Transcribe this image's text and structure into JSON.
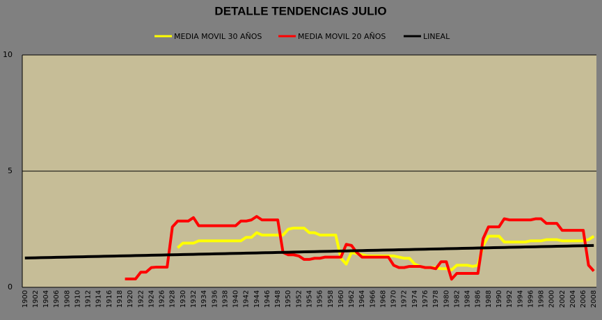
{
  "chart_data": {
    "type": "line",
    "title": "DETALLE TENDENCIAS JULIO",
    "categories": [
      "1900",
      null,
      "1902",
      null,
      "1904",
      null,
      "1906",
      null,
      "1908",
      null,
      "1910",
      null,
      "1912",
      null,
      "1914",
      null,
      "1916",
      null,
      "1918",
      null,
      "1920",
      null,
      "1922",
      null,
      "1924",
      null,
      "1926",
      null,
      "1928",
      null,
      "1930",
      null,
      "1932",
      null,
      "1934",
      null,
      "1936",
      null,
      "1938",
      null,
      "1940",
      null,
      "1942",
      null,
      "1944",
      null,
      "1946",
      null,
      "1948",
      null,
      "1950",
      null,
      "1952",
      null,
      "1954",
      null,
      "1956",
      null,
      "1958",
      null,
      "1960",
      null,
      "1962",
      null,
      "1964",
      null,
      "1966",
      null,
      "1968",
      null,
      "1970",
      null,
      "1972",
      null,
      "1974",
      null,
      "1976",
      null,
      "1978",
      null,
      "1980",
      null,
      "1982",
      null,
      "1984",
      null,
      "1986",
      null,
      "1988",
      null,
      "1990",
      null,
      "1992",
      null,
      "1994",
      null,
      "1996",
      null,
      "1998",
      null,
      "2000",
      null,
      "2002",
      null,
      "2004",
      null,
      "2006",
      null,
      "2008"
    ],
    "series": [
      {
        "name": "MEDIA MOVIL 30 AÑOS",
        "color": "#ffff00",
        "values": [
          null,
          null,
          null,
          null,
          null,
          null,
          null,
          null,
          null,
          null,
          null,
          null,
          null,
          null,
          null,
          null,
          null,
          null,
          null,
          null,
          null,
          null,
          null,
          null,
          null,
          null,
          null,
          null,
          null,
          1.7,
          1.9,
          1.9,
          1.9,
          2.0,
          2.0,
          2.0,
          2.0,
          2.0,
          2.0,
          2.0,
          2.0,
          2.0,
          2.15,
          2.15,
          2.35,
          2.25,
          2.25,
          2.25,
          2.25,
          2.25,
          2.5,
          2.55,
          2.55,
          2.55,
          2.35,
          2.35,
          2.25,
          2.25,
          2.25,
          2.25,
          1.25,
          1.0,
          1.5,
          1.45,
          1.4,
          1.35,
          1.35,
          1.35,
          1.35,
          1.35,
          1.35,
          1.3,
          1.25,
          1.25,
          1.0,
          0.9,
          0.85,
          0.85,
          0.85,
          0.8,
          0.8,
          0.75,
          0.95,
          0.95,
          0.95,
          0.9,
          0.95,
          1.8,
          2.2,
          2.2,
          2.2,
          1.95,
          1.95,
          1.95,
          1.95,
          1.95,
          2.0,
          2.0,
          2.0,
          2.05,
          2.05,
          2.05,
          2.0,
          2.0,
          2.0,
          2.0,
          2.0,
          2.05,
          2.2
        ]
      },
      {
        "name": "MEDIA MOVIL 20 AÑOS",
        "color": "#ff0000",
        "values": [
          null,
          null,
          null,
          null,
          null,
          null,
          null,
          null,
          null,
          null,
          null,
          null,
          null,
          null,
          null,
          null,
          null,
          null,
          null,
          0.36,
          0.36,
          0.36,
          0.65,
          0.65,
          0.85,
          0.87,
          0.87,
          0.87,
          2.6,
          2.85,
          2.85,
          2.85,
          3.0,
          2.65,
          2.65,
          2.65,
          2.65,
          2.65,
          2.65,
          2.65,
          2.65,
          2.85,
          2.85,
          2.9,
          3.05,
          2.9,
          2.9,
          2.9,
          2.9,
          1.5,
          1.4,
          1.4,
          1.35,
          1.2,
          1.2,
          1.25,
          1.25,
          1.3,
          1.3,
          1.3,
          1.3,
          1.85,
          1.8,
          1.5,
          1.3,
          1.3,
          1.3,
          1.3,
          1.3,
          1.3,
          0.95,
          0.85,
          0.85,
          0.9,
          0.9,
          0.9,
          0.85,
          0.85,
          0.8,
          1.1,
          1.1,
          0.35,
          0.6,
          0.6,
          0.6,
          0.6,
          0.6,
          2.1,
          2.6,
          2.6,
          2.6,
          2.95,
          2.9,
          2.9,
          2.9,
          2.9,
          2.9,
          2.95,
          2.95,
          2.75,
          2.75,
          2.75,
          2.45,
          2.45,
          2.45,
          2.45,
          2.45,
          0.95,
          0.7
        ]
      },
      {
        "name": "LINEAL",
        "color": "#000000",
        "values": [
          1.26,
          1.265,
          1.27,
          1.275,
          1.28,
          1.285,
          1.29,
          1.295,
          1.3,
          1.305,
          1.31,
          1.315,
          1.32,
          1.325,
          1.33,
          1.335,
          1.34,
          1.345,
          1.35,
          1.355,
          1.36,
          1.365,
          1.37,
          1.375,
          1.38,
          1.385,
          1.39,
          1.395,
          1.4,
          1.405,
          1.41,
          1.415,
          1.42,
          1.425,
          1.43,
          1.435,
          1.44,
          1.445,
          1.45,
          1.455,
          1.46,
          1.465,
          1.47,
          1.475,
          1.48,
          1.485,
          1.49,
          1.495,
          1.5,
          1.505,
          1.51,
          1.515,
          1.52,
          1.525,
          1.53,
          1.535,
          1.54,
          1.545,
          1.55,
          1.555,
          1.56,
          1.565,
          1.57,
          1.575,
          1.58,
          1.585,
          1.59,
          1.595,
          1.6,
          1.605,
          1.61,
          1.615,
          1.62,
          1.625,
          1.63,
          1.635,
          1.64,
          1.645,
          1.65,
          1.655,
          1.66,
          1.665,
          1.67,
          1.675,
          1.68,
          1.685,
          1.69,
          1.695,
          1.7,
          1.705,
          1.71,
          1.715,
          1.72,
          1.725,
          1.73,
          1.735,
          1.74,
          1.745,
          1.75,
          1.755,
          1.76,
          1.765,
          1.77,
          1.775,
          1.78,
          1.785,
          1.79,
          1.795,
          1.8
        ]
      }
    ],
    "ylim": [
      0,
      10
    ],
    "yticks": [
      0,
      5,
      10
    ],
    "grid": true,
    "legend": "top",
    "plot_color": "#c6bd97"
  }
}
